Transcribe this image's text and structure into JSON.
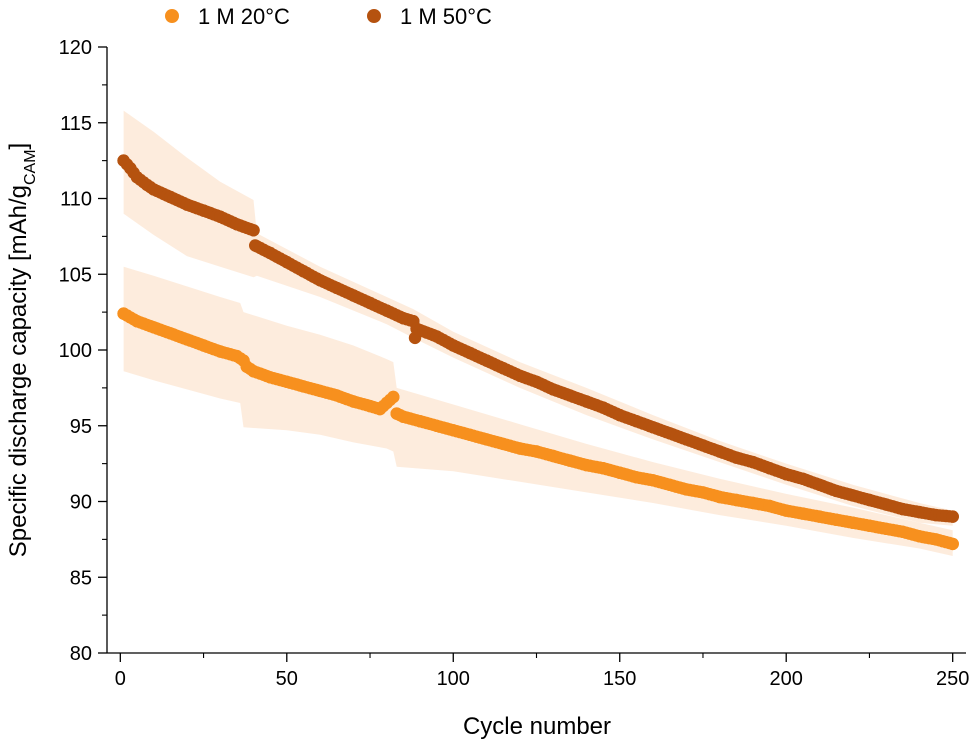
{
  "chart_data": {
    "type": "scatter",
    "xlabel": "Cycle number",
    "ylabel_main": "Specific discharge capacity [mAh/g",
    "ylabel_sub": "CAM",
    "ylabel_end": "]",
    "xlim": [
      -4,
      254
    ],
    "ylim": [
      80,
      120
    ],
    "xticks": [
      0,
      50,
      100,
      150,
      200,
      250
    ],
    "yticks": [
      80,
      85,
      90,
      95,
      100,
      105,
      110,
      115,
      120
    ],
    "grid": false,
    "legend_position": "top",
    "band_color": "#fde9d7",
    "series": [
      {
        "name": "1 M 20°C",
        "color": "#f7901e",
        "points": [
          [
            1,
            102.4
          ],
          [
            5,
            101.9
          ],
          [
            10,
            101.5
          ],
          [
            15,
            101.1
          ],
          [
            20,
            100.7
          ],
          [
            25,
            100.3
          ],
          [
            30,
            99.9
          ],
          [
            35,
            99.6
          ],
          [
            37,
            99.3
          ],
          [
            38,
            98.9
          ],
          [
            40,
            98.6
          ],
          [
            45,
            98.2
          ],
          [
            50,
            97.9
          ],
          [
            55,
            97.6
          ],
          [
            60,
            97.3
          ],
          [
            65,
            97.0
          ],
          [
            70,
            96.6
          ],
          [
            75,
            96.3
          ],
          [
            78,
            96.1
          ],
          [
            80,
            96.5
          ],
          [
            82,
            96.9
          ],
          [
            83,
            95.8
          ],
          [
            85,
            95.6
          ],
          [
            90,
            95.3
          ],
          [
            95,
            95.0
          ],
          [
            100,
            94.7
          ],
          [
            105,
            94.4
          ],
          [
            110,
            94.1
          ],
          [
            115,
            93.8
          ],
          [
            120,
            93.5
          ],
          [
            125,
            93.3
          ],
          [
            130,
            93.0
          ],
          [
            135,
            92.7
          ],
          [
            140,
            92.4
          ],
          [
            145,
            92.2
          ],
          [
            150,
            91.9
          ],
          [
            155,
            91.6
          ],
          [
            160,
            91.4
          ],
          [
            165,
            91.1
          ],
          [
            170,
            90.8
          ],
          [
            175,
            90.6
          ],
          [
            180,
            90.3
          ],
          [
            185,
            90.1
          ],
          [
            190,
            89.9
          ],
          [
            195,
            89.7
          ],
          [
            200,
            89.4
          ],
          [
            205,
            89.2
          ],
          [
            210,
            89.0
          ],
          [
            215,
            88.8
          ],
          [
            220,
            88.6
          ],
          [
            225,
            88.4
          ],
          [
            230,
            88.2
          ],
          [
            235,
            88.0
          ],
          [
            240,
            87.7
          ],
          [
            245,
            87.5
          ],
          [
            250,
            87.2
          ]
        ],
        "band": [
          [
            1,
            105.5,
            98.6
          ],
          [
            10,
            104.9,
            98.0
          ],
          [
            20,
            104.2,
            97.4
          ],
          [
            30,
            103.5,
            96.8
          ],
          [
            36,
            103.1,
            96.5
          ],
          [
            37,
            102.5,
            94.9
          ],
          [
            50,
            101.6,
            94.7
          ],
          [
            60,
            101.0,
            94.4
          ],
          [
            70,
            100.3,
            93.9
          ],
          [
            80,
            99.4,
            93.5
          ],
          [
            82,
            99.2,
            93.3
          ],
          [
            83,
            97.5,
            92.3
          ],
          [
            100,
            96.4,
            92.0
          ],
          [
            120,
            95.1,
            91.3
          ],
          [
            140,
            93.8,
            90.6
          ],
          [
            160,
            92.6,
            89.9
          ],
          [
            180,
            91.5,
            89.1
          ],
          [
            200,
            90.5,
            88.4
          ],
          [
            220,
            89.6,
            87.6
          ],
          [
            240,
            88.6,
            86.9
          ],
          [
            250,
            88.1,
            86.4
          ]
        ]
      },
      {
        "name": "1 M 50°C",
        "color": "#b5520f",
        "points": [
          [
            1,
            112.5
          ],
          [
            3,
            112.0
          ],
          [
            5,
            111.4
          ],
          [
            8,
            110.9
          ],
          [
            10,
            110.6
          ],
          [
            15,
            110.1
          ],
          [
            20,
            109.6
          ],
          [
            25,
            109.2
          ],
          [
            30,
            108.8
          ],
          [
            35,
            108.3
          ],
          [
            40,
            107.9
          ],
          [
            40.5,
            106.9
          ],
          [
            45,
            106.4
          ],
          [
            50,
            105.8
          ],
          [
            55,
            105.2
          ],
          [
            60,
            104.6
          ],
          [
            65,
            104.1
          ],
          [
            70,
            103.6
          ],
          [
            75,
            103.1
          ],
          [
            80,
            102.6
          ],
          [
            85,
            102.1
          ],
          [
            88,
            101.9
          ],
          [
            88.5,
            100.8
          ],
          [
            89,
            101.4
          ],
          [
            95,
            100.9
          ],
          [
            100,
            100.3
          ],
          [
            105,
            99.8
          ],
          [
            110,
            99.3
          ],
          [
            115,
            98.8
          ],
          [
            120,
            98.3
          ],
          [
            125,
            97.9
          ],
          [
            130,
            97.4
          ],
          [
            135,
            97.0
          ],
          [
            140,
            96.6
          ],
          [
            145,
            96.2
          ],
          [
            150,
            95.7
          ],
          [
            155,
            95.3
          ],
          [
            160,
            94.9
          ],
          [
            165,
            94.5
          ],
          [
            170,
            94.1
          ],
          [
            175,
            93.7
          ],
          [
            180,
            93.3
          ],
          [
            185,
            92.9
          ],
          [
            190,
            92.6
          ],
          [
            195,
            92.2
          ],
          [
            200,
            91.8
          ],
          [
            205,
            91.5
          ],
          [
            210,
            91.1
          ],
          [
            215,
            90.7
          ],
          [
            220,
            90.4
          ],
          [
            225,
            90.1
          ],
          [
            230,
            89.8
          ],
          [
            235,
            89.5
          ],
          [
            240,
            89.3
          ],
          [
            245,
            89.1
          ],
          [
            250,
            89.0
          ]
        ],
        "band": [
          [
            1,
            115.8,
            109.0
          ],
          [
            10,
            114.4,
            107.6
          ],
          [
            20,
            112.7,
            106.2
          ],
          [
            30,
            111.1,
            105.5
          ],
          [
            40,
            109.9,
            104.8
          ],
          [
            41,
            107.7,
            104.9
          ],
          [
            60,
            105.5,
            103.5
          ],
          [
            80,
            103.5,
            101.7
          ],
          [
            88,
            102.7,
            100.8
          ],
          [
            100,
            101.2,
            99.5
          ],
          [
            120,
            99.2,
            97.5
          ],
          [
            140,
            97.5,
            95.7
          ],
          [
            160,
            95.7,
            94.1
          ],
          [
            180,
            94.0,
            92.6
          ],
          [
            200,
            92.5,
            91.1
          ],
          [
            220,
            91.1,
            89.7
          ],
          [
            240,
            89.9,
            88.6
          ],
          [
            250,
            89.4,
            88.4
          ]
        ]
      }
    ]
  }
}
